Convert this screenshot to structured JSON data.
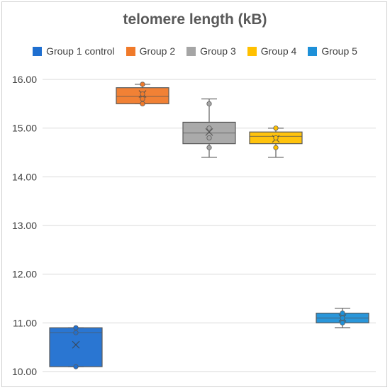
{
  "chart_data": {
    "type": "box",
    "title": "telomere length (kB)",
    "xlabel": "",
    "ylabel": "",
    "ylim": [
      10.0,
      16.0
    ],
    "y_ticks": [
      "10.00",
      "11.00",
      "12.00",
      "13.00",
      "14.00",
      "15.00",
      "16.00"
    ],
    "grid": true,
    "legend_position": "top",
    "series": [
      {
        "name": "Group 1 control",
        "color": "#1f6fd0",
        "min": 10.1,
        "q1": 10.1,
        "median": 10.8,
        "q3": 10.9,
        "max": 10.9,
        "mean": 10.55,
        "points": [
          10.1,
          10.8,
          10.9
        ]
      },
      {
        "name": "Group 2",
        "color": "#f07a2a",
        "min": 15.5,
        "q1": 15.5,
        "median": 15.65,
        "q3": 15.83,
        "max": 15.9,
        "mean": 15.7,
        "points": [
          15.5,
          15.6,
          15.7,
          15.9
        ]
      },
      {
        "name": "Group 3",
        "color": "#a5a5a5",
        "min": 14.4,
        "q1": 14.68,
        "median": 14.9,
        "q3": 15.12,
        "max": 15.6,
        "mean": 14.92,
        "points": [
          14.6,
          14.8,
          15.0,
          15.5
        ]
      },
      {
        "name": "Group 4",
        "color": "#ffc000",
        "min": 14.4,
        "q1": 14.68,
        "median": 14.83,
        "q3": 14.92,
        "max": 15.0,
        "mean": 14.78,
        "points": [
          14.6,
          14.8,
          15.0
        ]
      },
      {
        "name": "Group 5",
        "color": "#1e90d8",
        "min": 10.9,
        "q1": 11.0,
        "median": 11.1,
        "q3": 11.2,
        "max": 11.3,
        "mean": 11.1,
        "points": [
          11.0,
          11.1,
          11.2
        ]
      }
    ]
  }
}
